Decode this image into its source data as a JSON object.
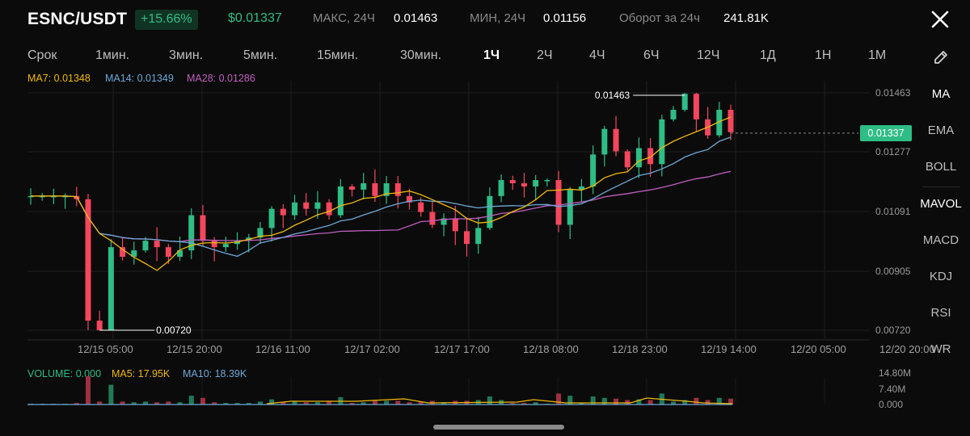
{
  "header": {
    "pair": "ESNC/USDT",
    "change": "+15.66%",
    "price": "$0.01337",
    "high_label": "МАКС, 24Ч",
    "high_value": "0.01463",
    "low_label": "МИН, 24Ч",
    "low_value": "0.01156",
    "turnover_label": "Оборот за 24ч",
    "turnover_value": "241.81K"
  },
  "timeframes": {
    "label": "Срок",
    "items": [
      "1мин.",
      "3мин.",
      "5мин.",
      "15мин.",
      "30мин.",
      "1Ч",
      "2Ч",
      "4Ч",
      "6Ч",
      "12Ч",
      "1Д",
      "1Н",
      "1М"
    ],
    "active": "1Ч"
  },
  "indicators": {
    "items": [
      "MA",
      "EMA",
      "BOLL",
      "MAVOL",
      "MACD",
      "KDJ",
      "RSI",
      "WR"
    ]
  },
  "ma_legend": {
    "ma7": "MA7: 0.01348",
    "ma14": "MA14: 0.01349",
    "ma28": "MA28: 0.01286"
  },
  "volume_legend": {
    "volume": "VOLUME: 0.000",
    "ma5": "MA5: 17.95K",
    "ma10": "MA10: 18.39K"
  },
  "price_axis": [
    "0.01463",
    "0.01277",
    "0.01091",
    "0.00905",
    "0.00720"
  ],
  "volume_axis": [
    "14.80M",
    "7.40M",
    "0.000"
  ],
  "time_axis": [
    "12/15 05:00",
    "12/15 20:00",
    "12/16 11:00",
    "12/17 02:00",
    "12/17 17:00",
    "12/18 08:00",
    "12/18 23:00",
    "12/19 14:00",
    "12/20 05:00",
    "12/20 20:00"
  ],
  "annotations": {
    "high": "0.01463",
    "low": "0.00720"
  },
  "current_price_tag": "0.01337",
  "colors": {
    "up": "#2ebd85",
    "down": "#f6465d",
    "ma7": "#f0b90b",
    "ma14": "#6ea8d8",
    "ma28": "#c05fc0",
    "background": "#0b0b0b"
  },
  "chart_data": {
    "type": "candlestick",
    "price_range": [
      0.0072,
      0.01463
    ],
    "close_series_approx": [
      0.0114,
      0.0114,
      0.0114,
      0.0114,
      0.0113,
      0.0075,
      0.0072,
      0.0098,
      0.0095,
      0.0097,
      0.01,
      0.0098,
      0.0095,
      0.0097,
      0.0108,
      0.01,
      0.0098,
      0.0099,
      0.01,
      0.0101,
      0.0104,
      0.011,
      0.0108,
      0.0112,
      0.011,
      0.0112,
      0.0108,
      0.0117,
      0.0116,
      0.0118,
      0.0114,
      0.0118,
      0.0114,
      0.0112,
      0.0109,
      0.0105,
      0.0107,
      0.0103,
      0.0099,
      0.0104,
      0.0114,
      0.0119,
      0.0118,
      0.0117,
      0.0119,
      0.0119,
      0.0105,
      0.0116,
      0.0117,
      0.0127,
      0.0135,
      0.0128,
      0.0123,
      0.0129,
      0.0124,
      0.0138,
      0.0141,
      0.0146,
      0.0138,
      0.0133,
      0.0141,
      0.0134
    ]
  }
}
